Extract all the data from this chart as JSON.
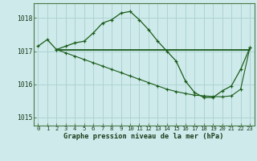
{
  "title": "Graphe pression niveau de la mer (hPa)",
  "background_color": "#ceeaea",
  "grid_color": "#aacfcf",
  "line_color": "#1a5c1a",
  "xlim": [
    -0.5,
    23.5
  ],
  "ylim": [
    1014.75,
    1018.45
  ],
  "yticks": [
    1015,
    1016,
    1017,
    1018
  ],
  "xticks": [
    0,
    1,
    2,
    3,
    4,
    5,
    6,
    7,
    8,
    9,
    10,
    11,
    12,
    13,
    14,
    15,
    16,
    17,
    18,
    19,
    20,
    21,
    22,
    23
  ],
  "series1_x": [
    0,
    1,
    2,
    3,
    4,
    5,
    6,
    7,
    8,
    9,
    10,
    11,
    12,
    13,
    14,
    15,
    16,
    17,
    18,
    19,
    20,
    21,
    22,
    23
  ],
  "series1_y": [
    1017.15,
    1017.35,
    1017.05,
    1017.15,
    1017.25,
    1017.3,
    1017.55,
    1017.85,
    1017.95,
    1018.15,
    1018.2,
    1017.95,
    1017.65,
    1017.3,
    1017.0,
    1016.7,
    1016.1,
    1015.75,
    1015.6,
    1015.6,
    1015.8,
    1015.95,
    1016.45,
    1017.1
  ],
  "series2_x": [
    2,
    3,
    4,
    5,
    6,
    7,
    8,
    9,
    10,
    11,
    12,
    13,
    14,
    15,
    16,
    17,
    18,
    19,
    20,
    21,
    22,
    23
  ],
  "series2_y": [
    1017.05,
    1016.95,
    1016.85,
    1016.75,
    1016.65,
    1016.55,
    1016.45,
    1016.35,
    1016.25,
    1016.15,
    1016.05,
    1015.95,
    1015.85,
    1015.78,
    1015.72,
    1015.67,
    1015.65,
    1015.63,
    1015.62,
    1015.65,
    1015.85,
    1017.1
  ],
  "hline_y": 1017.05,
  "hline_x_start": 2,
  "hline_x_end": 23
}
